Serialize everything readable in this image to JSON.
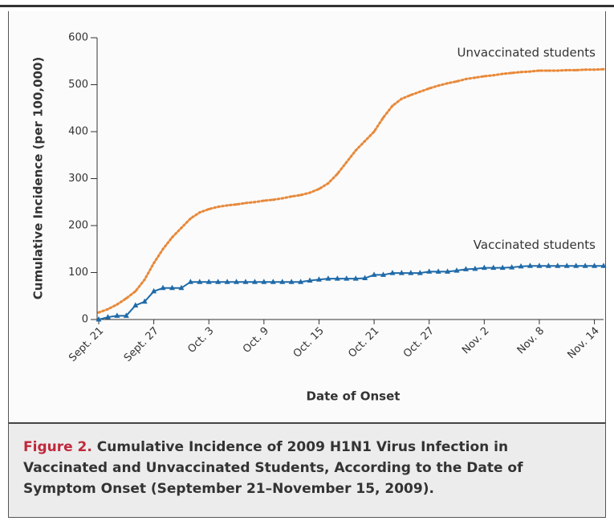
{
  "chart_data": {
    "type": "line",
    "y_label": "Cumulative Incidence (per 100,000)",
    "x_label": "Date of Onset",
    "x": [
      0,
      1,
      2,
      3,
      4,
      5,
      6,
      7,
      8,
      9,
      10,
      11,
      12,
      13,
      14,
      15,
      16,
      17,
      18,
      19,
      20,
      21,
      22,
      23,
      24,
      25,
      26,
      27,
      28,
      29,
      30,
      31,
      32,
      33,
      34,
      35,
      36,
      37,
      38,
      39,
      40,
      41,
      42,
      43,
      44,
      45,
      46,
      47,
      48,
      49,
      50,
      51,
      52,
      53,
      54,
      55
    ],
    "xlim": [
      0,
      55
    ],
    "xticks": [
      {
        "value": 0,
        "label": "Sept. 21"
      },
      {
        "value": 6,
        "label": "Sept. 27"
      },
      {
        "value": 12,
        "label": "Oct. 3"
      },
      {
        "value": 18,
        "label": "Oct. 9"
      },
      {
        "value": 24,
        "label": "Oct. 15"
      },
      {
        "value": 30,
        "label": "Oct. 21"
      },
      {
        "value": 36,
        "label": "Oct. 27"
      },
      {
        "value": 42,
        "label": "Nov. 2"
      },
      {
        "value": 48,
        "label": "Nov. 8"
      },
      {
        "value": 54,
        "label": "Nov. 14"
      }
    ],
    "ylim": [
      0,
      600
    ],
    "yticks": [
      0,
      100,
      200,
      300,
      400,
      500,
      600
    ],
    "series": [
      {
        "name": "Unvaccinated students",
        "color": "#e8893a",
        "style": "dotted",
        "values": [
          15,
          22,
          32,
          45,
          60,
          85,
          120,
          150,
          175,
          195,
          215,
          228,
          235,
          240,
          243,
          245,
          248,
          250,
          253,
          255,
          258,
          262,
          265,
          270,
          278,
          290,
          310,
          335,
          360,
          380,
          400,
          430,
          455,
          470,
          478,
          485,
          492,
          498,
          503,
          507,
          512,
          515,
          518,
          520,
          523,
          525,
          527,
          528,
          530,
          530,
          530,
          531,
          531,
          532,
          532,
          533
        ]
      },
      {
        "name": "Vaccinated students",
        "color": "#1f6aa8",
        "style": "markers",
        "values": [
          0,
          5,
          8,
          8,
          30,
          38,
          60,
          67,
          67,
          67,
          80,
          80,
          80,
          80,
          80,
          80,
          80,
          80,
          80,
          80,
          80,
          80,
          80,
          83,
          85,
          87,
          87,
          87,
          87,
          88,
          95,
          95,
          99,
          99,
          99,
          99,
          102,
          102,
          102,
          104,
          107,
          108,
          110,
          110,
          110,
          111,
          113,
          114,
          114,
          114,
          114,
          114,
          114,
          114,
          114,
          114
        ]
      }
    ]
  },
  "caption": {
    "label": "Figure 2.",
    "text": "Cumulative Incidence of 2009 H1N1 Virus Infection in Vaccinated and Unvaccinated Students, According to the Date of Symptom Onset (September 21–November 15, 2009)."
  }
}
